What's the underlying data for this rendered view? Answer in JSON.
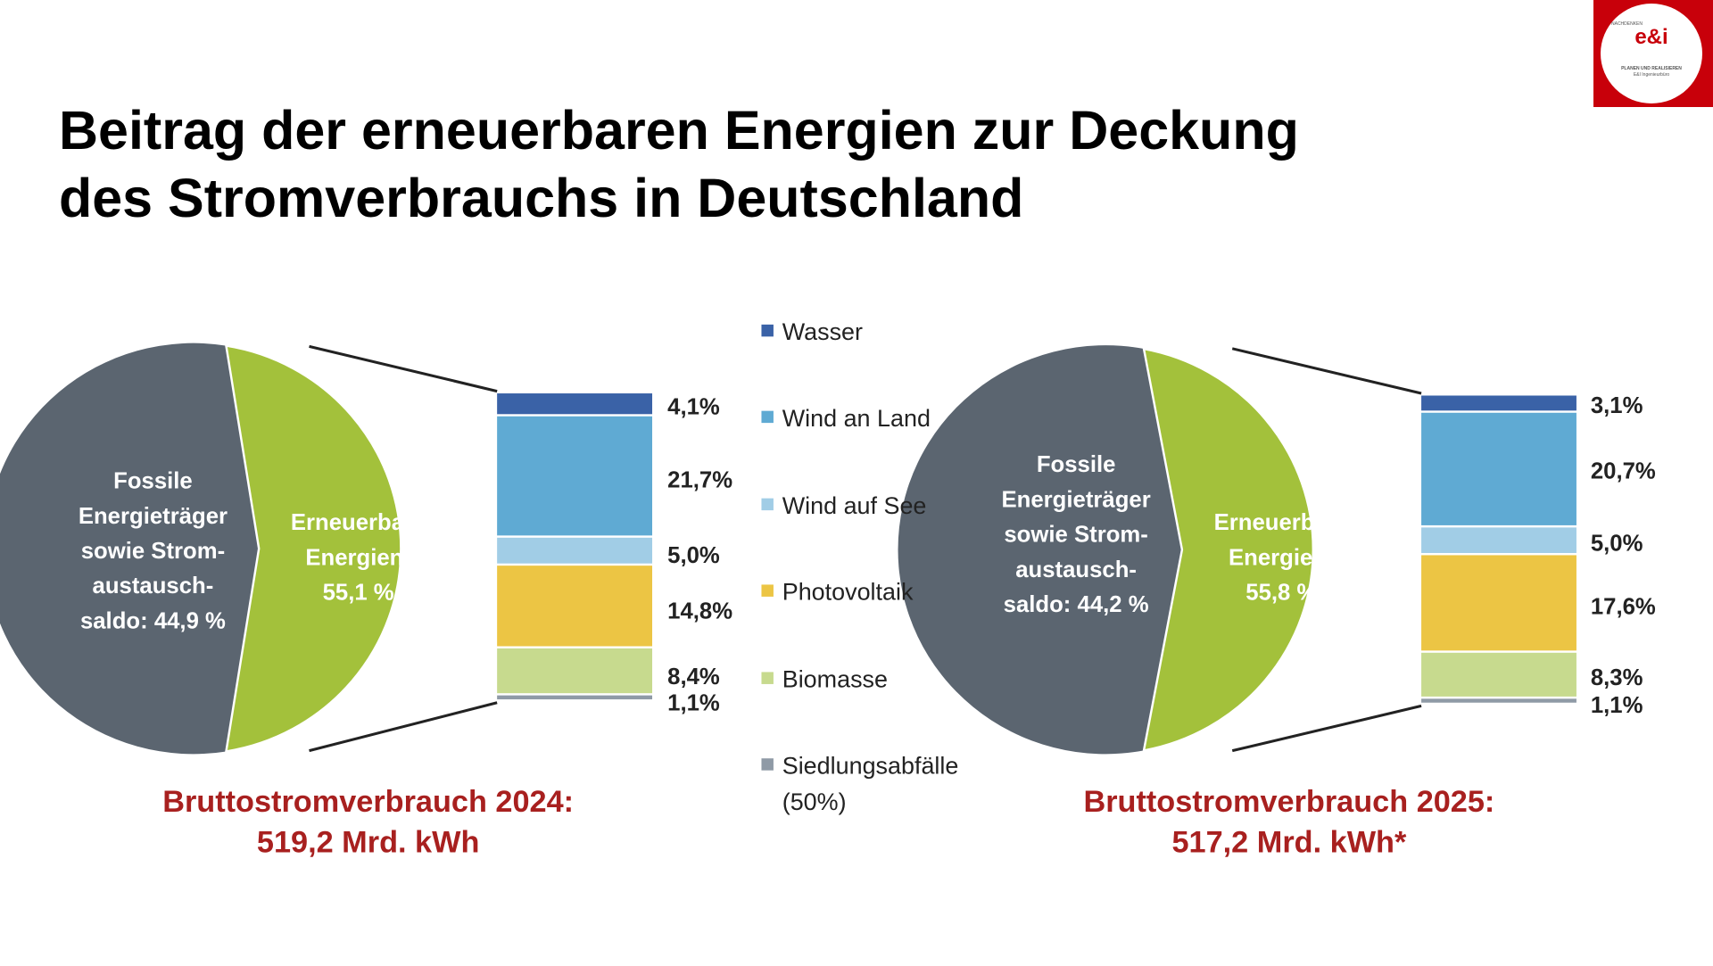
{
  "title_lines": [
    "Beitrag der erneuerbaren Energien zur Deckung",
    "des Stromverbrauchs in Deutschland"
  ],
  "logo": {
    "top_left": "NACHDENKEN",
    "top_right": "IDEEN",
    "brand": "e&i",
    "tagline": "Energy • Innovation",
    "line1": "PLANEN UND REALISIEREN",
    "line2": "E&I Ingenieurbüro für erneuerbare",
    "line3": "Energien und TGA"
  },
  "chart_data": [
    {
      "type": "pie",
      "slices": [
        {
          "label_lines": [
            "Fossile",
            "Energieträger",
            "sowie Strom-",
            "austausch-",
            "saldo: 44,9 %"
          ],
          "value": 44.9,
          "color": "#5b6570"
        },
        {
          "label_lines": [
            "Erneuerbare",
            "Energien:",
            "55,1 %"
          ],
          "value": 55.1,
          "color": "#a3c13b"
        }
      ],
      "breakdown": {
        "type": "stacked-bar",
        "values": [
          4.1,
          21.7,
          5.0,
          14.8,
          8.4,
          1.1
        ],
        "labels": [
          "4,1%",
          "21,7%",
          "5,0%",
          "14,8%",
          "8,4%",
          "1,1%"
        ]
      },
      "caption_lines": [
        "Bruttostromverbrauch 2024:",
        "519,2 Mrd. kWh"
      ]
    },
    {
      "type": "pie",
      "slices": [
        {
          "label_lines": [
            "Fossile",
            "Energieträger",
            "sowie Strom-",
            "austausch-",
            "saldo: 44,2 %"
          ],
          "value": 44.2,
          "color": "#5b6570"
        },
        {
          "label_lines": [
            "Erneuerbare",
            "Energien:",
            "55,8 %"
          ],
          "value": 55.8,
          "color": "#a3c13b"
        }
      ],
      "breakdown": {
        "type": "stacked-bar",
        "values": [
          3.1,
          20.7,
          5.0,
          17.6,
          8.3,
          1.1
        ],
        "labels": [
          "3,1%",
          "20,7%",
          "5,0%",
          "17,6%",
          "8,3%",
          "1,1%"
        ]
      },
      "caption_lines": [
        "Bruttostromverbrauch 2025:",
        "517,2 Mrd. kWh*"
      ]
    }
  ],
  "legend": [
    {
      "label_lines": [
        "Wasser"
      ],
      "color": "#3a62a7"
    },
    {
      "label_lines": [
        "Wind an Land"
      ],
      "color": "#5faad3"
    },
    {
      "label_lines": [
        "Wind auf See"
      ],
      "color": "#a1cde6"
    },
    {
      "label_lines": [
        "Photovoltaik"
      ],
      "color": "#ecc544"
    },
    {
      "label_lines": [
        "Biomasse"
      ],
      "color": "#c7da8e"
    },
    {
      "label_lines": [
        "Siedlungsabfälle",
        "(50%)"
      ],
      "color": "#8f9aa6"
    }
  ]
}
